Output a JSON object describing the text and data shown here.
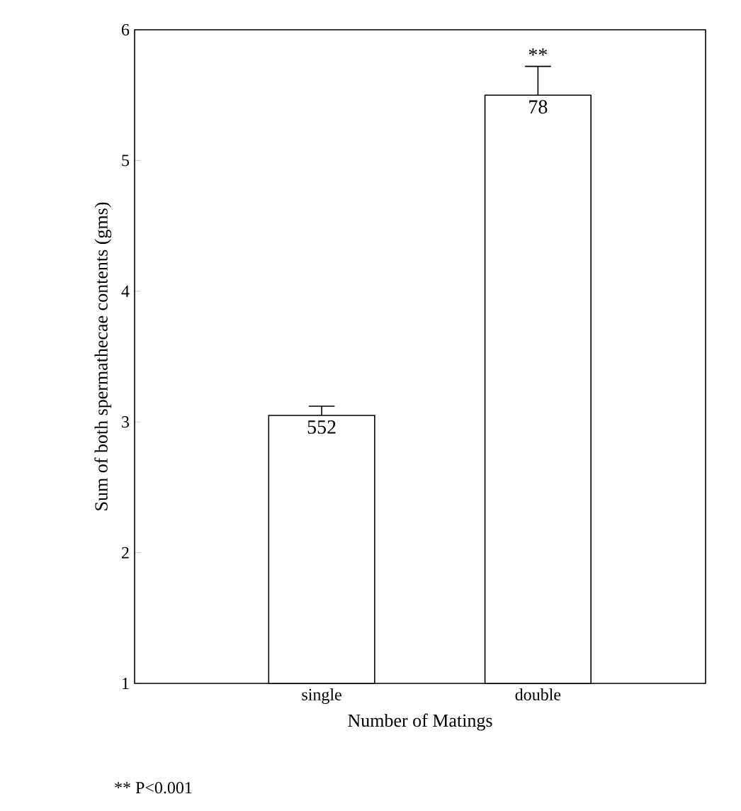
{
  "chart_data": {
    "type": "bar",
    "xlabel": "Number of Matings",
    "ylabel": "Sum of both spermathecae contents (gms)",
    "categories": [
      "single",
      "double"
    ],
    "values": [
      3.05,
      5.5
    ],
    "color": "#ffffff",
    "errors": [
      [
        3.05,
        3.12
      ],
      [
        5.5,
        5.72
      ]
    ],
    "ylim": [
      1,
      6
    ],
    "yticks": [
      1,
      2,
      3,
      4,
      5,
      6
    ],
    "grid": false,
    "annotations": [
      {
        "text": "552",
        "x": "single",
        "y": 3.05
      },
      {
        "text": "78",
        "x": "double",
        "y": 5.5
      },
      {
        "text": "**",
        "x": "double",
        "y": 5.72
      },
      "** P<0.001"
    ]
  }
}
